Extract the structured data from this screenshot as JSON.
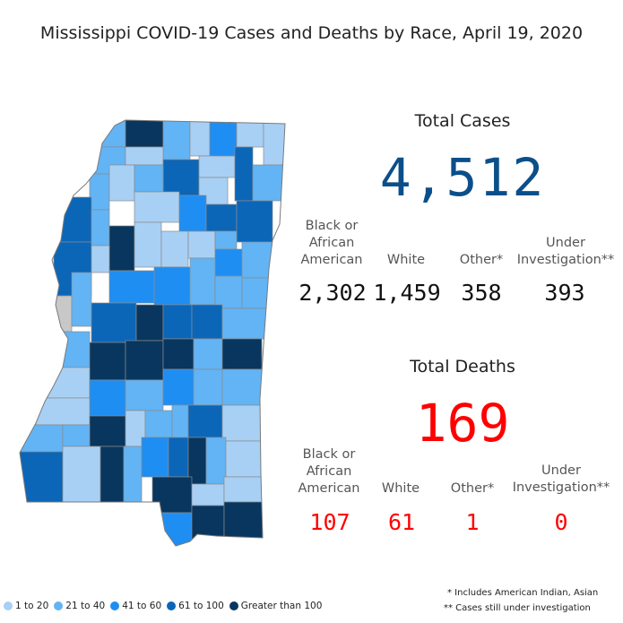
{
  "title": "Mississippi COVID-19 Cases and Deaths by Race, April 19, 2020",
  "cases": {
    "heading": "Total Cases",
    "total": "4,512",
    "color": "#0b4f8a",
    "columns": [
      {
        "label": "Black or African American",
        "value": "2,302"
      },
      {
        "label": "White",
        "value": "1,459"
      },
      {
        "label": "Other*",
        "value": "358"
      },
      {
        "label": "Under Investigation**",
        "value": "393"
      }
    ]
  },
  "deaths": {
    "heading": "Total Deaths",
    "total": "169",
    "color": "#ff0000",
    "columns": [
      {
        "label": "Black or African American",
        "value": "107"
      },
      {
        "label": "White",
        "value": "61"
      },
      {
        "label": "Other*",
        "value": "1"
      },
      {
        "label": "Under Investigation**",
        "value": "0"
      }
    ]
  },
  "legend": [
    {
      "label": "1 to 20",
      "color": "#a8d0f5"
    },
    {
      "label": "21 to 40",
      "color": "#62b4f5"
    },
    {
      "label": "41 to 60",
      "color": "#1f8ef2"
    },
    {
      "label": "61 to 100",
      "color": "#0b66b8"
    },
    {
      "label": "Greater than 100",
      "color": "#08365e"
    }
  ],
  "notes": {
    "other": "* Includes American Indian, Asian",
    "investigation": "** Cases still under investigation"
  },
  "chart_data": {
    "type": "table",
    "title": "Mississippi COVID-19 Cases and Deaths by Race, April 19, 2020",
    "columns": [
      "Black or African American",
      "White",
      "Other*",
      "Under Investigation**"
    ],
    "rows": [
      {
        "name": "Total Cases",
        "total": 4512,
        "values": [
          2302,
          1459,
          358,
          393
        ]
      },
      {
        "name": "Total Deaths",
        "total": 169,
        "values": [
          107,
          61,
          1,
          0
        ]
      }
    ]
  }
}
